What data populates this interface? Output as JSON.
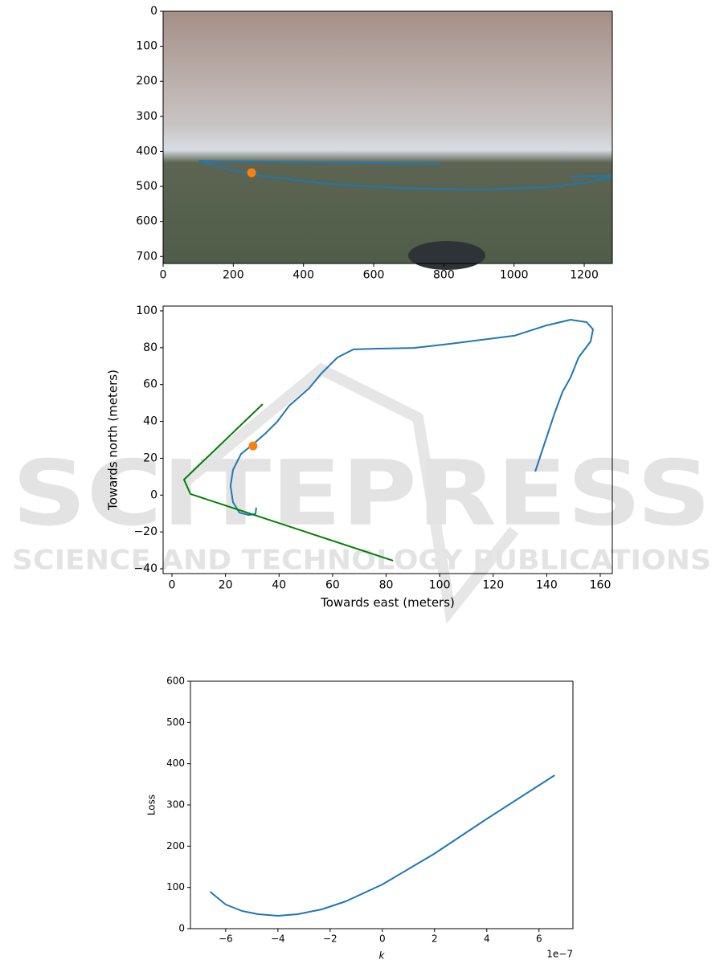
{
  "chart_data": [
    {
      "type": "line",
      "xlim": [
        0,
        1280
      ],
      "ylim": [
        0,
        720
      ],
      "invert_y": true,
      "xticks": [
        0,
        200,
        400,
        600,
        800,
        1000,
        1200
      ],
      "yticks": [
        0,
        100,
        200,
        300,
        400,
        500,
        600,
        700
      ],
      "series": [
        {
          "color": "#1f77b4",
          "x": [
            788,
            103,
            153,
            268,
            451,
            680,
            909,
            1092,
            1207,
            1280,
            null,
            1161,
            1280
          ],
          "values": [
            436,
            427,
            443,
            468,
            491,
            505,
            509,
            502,
            489,
            472,
            null,
            472,
            470
          ]
        },
        {
          "color": "#ff7f0e",
          "marker": true,
          "x": [
            252
          ],
          "values": [
            461
          ]
        }
      ]
    },
    {
      "type": "line",
      "xlim": [
        -3.3,
        164.5
      ],
      "ylim": [
        -42.6,
        102.6
      ],
      "xlabel": "Towards east (meters)",
      "ylabel": "Towards north (meters)",
      "xticks": [
        0,
        20,
        40,
        60,
        80,
        100,
        120,
        140,
        160
      ],
      "yticks": [
        {
          "value": -40,
          "label": "−40"
        },
        {
          "value": -20,
          "label": "−20"
        },
        0,
        20,
        40,
        60,
        80,
        100
      ],
      "series": [
        {
          "color": "#1f77b4",
          "x": [
            31.5,
            31.2,
            28.8,
            25.2,
            22.8,
            21.9,
            22.8,
            25.8,
            30.3,
            34.8,
            39.3,
            43.8,
            51.3,
            55.8,
            61.8,
            67.8,
            76.9,
            90.4,
            103.9,
            127.9,
            139.9,
            148.9,
            154.9,
            157.3,
            156.4,
            151.9,
            148.9,
            145.9,
            142.9,
            139.9,
            135.7
          ],
          "values": [
            -6.8,
            -10.3,
            -10.8,
            -9.5,
            -3.8,
            4.9,
            13.6,
            22.3,
            27.6,
            33.3,
            39.8,
            48.5,
            58.1,
            66.0,
            74.7,
            79.1,
            79.5,
            79.9,
            82.1,
            86.5,
            92.1,
            95.2,
            93.9,
            90.0,
            83.4,
            74.7,
            63.8,
            56.0,
            44.2,
            31.1,
            12.8
          ]
        },
        {
          "color": "#008000",
          "x": [
            33.9,
            4.5,
            6.9,
            82.6
          ],
          "values": [
            49.4,
            8.4,
            0.6,
            -35.6
          ]
        },
        {
          "color": "#ff7f0e",
          "marker": true,
          "x": [
            30.3
          ],
          "values": [
            26.7
          ]
        }
      ]
    },
    {
      "type": "line",
      "xlim": [
        -7.35,
        7.3
      ],
      "ylim": [
        0,
        600
      ],
      "xlabel": "k",
      "ylabel": "Loss",
      "x_offset_label": "1e−7",
      "xticks": [
        {
          "value": -6,
          "label": "−6"
        },
        {
          "value": -4,
          "label": "−4"
        },
        {
          "value": -2,
          "label": "−2"
        },
        0,
        2,
        4,
        6
      ],
      "yticks": [
        0,
        100,
        200,
        300,
        400,
        500,
        600
      ],
      "series": [
        {
          "color": "#1f77b4",
          "x": [
            -6.6,
            -6.0,
            -5.37,
            -4.76,
            -4.0,
            -3.24,
            -2.32,
            -1.4,
            0,
            1.98,
            3.97,
            6.6
          ],
          "values": [
            89.6,
            58.5,
            42.9,
            35.1,
            31.2,
            35.1,
            46.8,
            66.2,
            107.1,
            181.1,
            264.9,
            372.1
          ]
        }
      ]
    }
  ],
  "watermark": {
    "title": "SCITEPRESS",
    "subtitle": "SCIENCE AND TECHNOLOGY PUBLICATIONS"
  }
}
